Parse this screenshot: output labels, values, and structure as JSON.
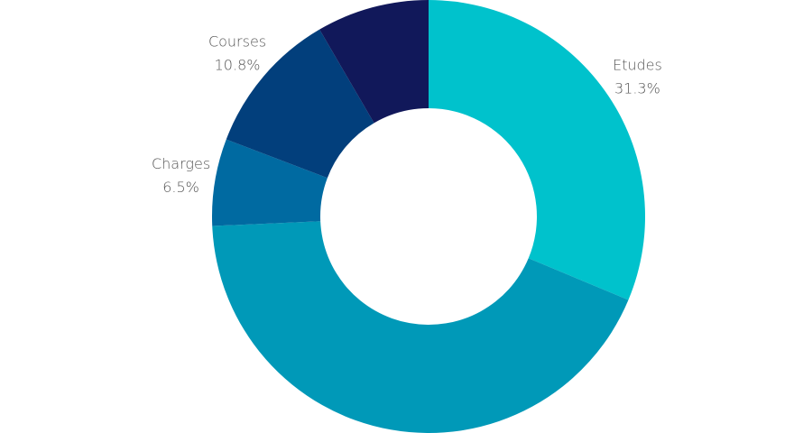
{
  "chart_data": {
    "type": "donut",
    "categories": [
      "Etudes",
      null,
      "Charges",
      "Courses",
      null
    ],
    "values": [
      31.3,
      43.0,
      6.5,
      10.8,
      8.4
    ],
    "value_labels": [
      "31.3%",
      null,
      "6.5%",
      "10.8%",
      null
    ],
    "colors": [
      "#00c2cc",
      "#0099b8",
      "#006aa1",
      "#023f7c",
      "#11185a"
    ]
  }
}
